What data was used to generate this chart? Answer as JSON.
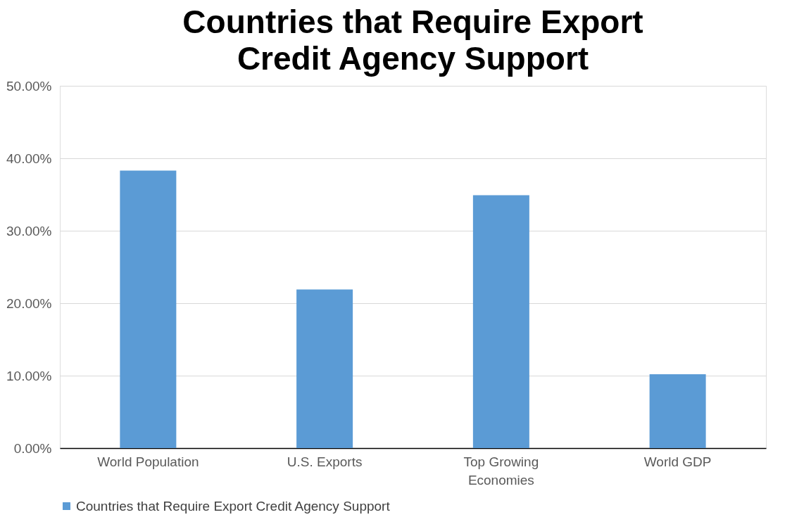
{
  "chart_data": {
    "type": "bar",
    "title": "Countries that Require Export Credit Agency Support",
    "categories": [
      "World Population",
      "U.S. Exports",
      "Top Growing Economies",
      "World GDP"
    ],
    "series": [
      {
        "name": "Countries that Require Export Credit Agency Support",
        "color": "#5b9bd5",
        "values": [
          38.3,
          21.9,
          34.9,
          10.2
        ]
      }
    ],
    "ylim": [
      0,
      50
    ],
    "yticks": [
      {
        "value": 0,
        "label": "0.00%"
      },
      {
        "value": 10,
        "label": "10.00%"
      },
      {
        "value": 20,
        "label": "20.00%"
      },
      {
        "value": 30,
        "label": "30.00%"
      },
      {
        "value": 40,
        "label": "40.00%"
      },
      {
        "value": 50,
        "label": "50.00%"
      }
    ],
    "grid": "y",
    "legend": "bottom"
  }
}
